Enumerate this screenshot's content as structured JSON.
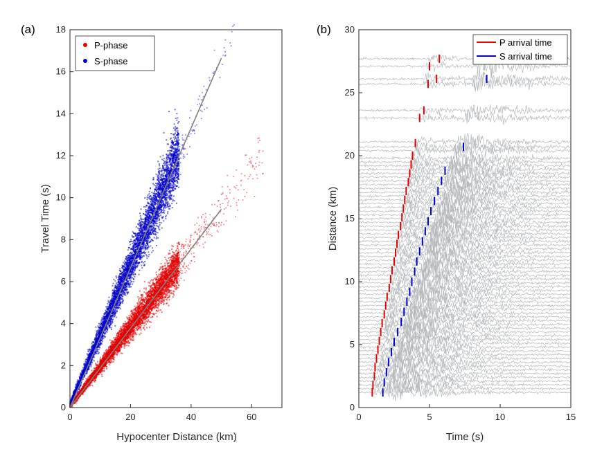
{
  "chart_data": [
    {
      "id": "a",
      "type": "scatter",
      "panel_label": "(a)",
      "title": "",
      "xlabel": "Hypocenter Distance (km)",
      "ylabel": "Travel Time (s)",
      "xlim": [
        0,
        70
      ],
      "ylim": [
        0,
        18
      ],
      "xticks": [
        "0",
        "20",
        "40",
        "60"
      ],
      "yticks": [
        "0",
        "2",
        "4",
        "6",
        "8",
        "10",
        "12",
        "14",
        "16",
        "18"
      ],
      "legend": {
        "position": "top-left",
        "entries": [
          "P-phase",
          "S-phase"
        ]
      },
      "series": [
        {
          "name": "P-phase",
          "color": "#e30000",
          "trend_slope_s_per_km": 0.189,
          "dense_x_range_km": [
            0,
            36
          ],
          "sparse_x_range_km": [
            36,
            64
          ],
          "fit_line": {
            "x": [
              0,
              50
            ],
            "y": [
              0,
              9.45
            ]
          }
        },
        {
          "name": "S-phase",
          "color": "#0000c8",
          "trend_slope_s_per_km": 0.333,
          "dense_x_range_km": [
            0,
            36
          ],
          "sparse_x_range_km": [
            36,
            55
          ],
          "fit_line": {
            "x": [
              0,
              50
            ],
            "y": [
              0,
              16.65
            ]
          }
        }
      ],
      "fit_line_color": "#808080"
    },
    {
      "id": "b",
      "type": "line",
      "panel_label": "(b)",
      "title": "",
      "xlabel": "Time (s)",
      "ylabel": "Distance (km)",
      "xlim": [
        0,
        15
      ],
      "ylim": [
        0,
        30
      ],
      "xticks": [
        "0",
        "5",
        "10",
        "15"
      ],
      "yticks": [
        "0",
        "5",
        "10",
        "15",
        "20",
        "25",
        "30"
      ],
      "legend": {
        "position": "top-right",
        "entries": [
          "P arrival time",
          "S arrival time"
        ]
      },
      "waveform_color": "#b4b8bb",
      "p_color": "#e30000",
      "s_color": "#0000c8",
      "trace_distances_km": [
        1.2,
        1.5,
        1.8,
        2.1,
        2.4,
        2.7,
        3.0,
        3.3,
        3.6,
        3.9,
        4.2,
        4.5,
        4.8,
        5.1,
        5.4,
        5.7,
        6.0,
        6.3,
        6.6,
        6.9,
        7.2,
        7.5,
        7.8,
        8.1,
        8.4,
        8.7,
        9.0,
        9.3,
        9.6,
        9.9,
        10.2,
        10.5,
        10.8,
        11.1,
        11.4,
        11.7,
        12.0,
        12.3,
        12.6,
        12.9,
        13.2,
        13.5,
        13.8,
        14.1,
        14.4,
        14.7,
        15.0,
        15.3,
        15.6,
        15.9,
        16.2,
        16.5,
        16.8,
        17.1,
        17.4,
        17.7,
        18.0,
        18.3,
        18.6,
        18.9,
        19.2,
        19.5,
        19.8,
        20.4,
        20.7,
        21.1,
        23.0,
        23.6,
        25.7,
        26.1,
        27.1,
        27.7
      ],
      "p_arrivals": [
        {
          "d": 1.2,
          "t": 0.95
        },
        {
          "d": 1.8,
          "t": 1.0
        },
        {
          "d": 2.5,
          "t": 1.1
        },
        {
          "d": 3.2,
          "t": 1.15
        },
        {
          "d": 3.9,
          "t": 1.25
        },
        {
          "d": 4.6,
          "t": 1.35
        },
        {
          "d": 5.3,
          "t": 1.45
        },
        {
          "d": 6.0,
          "t": 1.55
        },
        {
          "d": 6.7,
          "t": 1.65
        },
        {
          "d": 7.4,
          "t": 1.8
        },
        {
          "d": 8.1,
          "t": 1.9
        },
        {
          "d": 8.8,
          "t": 2.0
        },
        {
          "d": 9.5,
          "t": 2.15
        },
        {
          "d": 10.2,
          "t": 2.25
        },
        {
          "d": 10.9,
          "t": 2.35
        },
        {
          "d": 11.6,
          "t": 2.5
        },
        {
          "d": 12.3,
          "t": 2.6
        },
        {
          "d": 13.0,
          "t": 2.7
        },
        {
          "d": 13.7,
          "t": 2.8
        },
        {
          "d": 14.4,
          "t": 2.95
        },
        {
          "d": 15.1,
          "t": 3.05
        },
        {
          "d": 15.8,
          "t": 3.15
        },
        {
          "d": 16.5,
          "t": 3.25
        },
        {
          "d": 17.2,
          "t": 3.35
        },
        {
          "d": 17.9,
          "t": 3.5
        },
        {
          "d": 18.6,
          "t": 3.6
        },
        {
          "d": 19.3,
          "t": 3.7
        },
        {
          "d": 20.0,
          "t": 3.8
        },
        {
          "d": 21.0,
          "t": 4.0
        },
        {
          "d": 23.0,
          "t": 4.3
        },
        {
          "d": 23.6,
          "t": 4.6
        },
        {
          "d": 25.7,
          "t": 4.9
        },
        {
          "d": 26.1,
          "t": 5.5
        },
        {
          "d": 27.1,
          "t": 5.0
        },
        {
          "d": 27.7,
          "t": 5.7
        }
      ],
      "s_arrivals": [
        {
          "d": 1.2,
          "t": 1.7
        },
        {
          "d": 2.0,
          "t": 1.8
        },
        {
          "d": 2.8,
          "t": 1.95
        },
        {
          "d": 3.6,
          "t": 2.1
        },
        {
          "d": 4.4,
          "t": 2.3
        },
        {
          "d": 5.2,
          "t": 2.5
        },
        {
          "d": 6.0,
          "t": 2.75
        },
        {
          "d": 6.8,
          "t": 3.0
        },
        {
          "d": 7.6,
          "t": 3.2
        },
        {
          "d": 8.4,
          "t": 3.4
        },
        {
          "d": 9.2,
          "t": 3.6
        },
        {
          "d": 10.0,
          "t": 3.75
        },
        {
          "d": 10.8,
          "t": 3.95
        },
        {
          "d": 11.6,
          "t": 4.1
        },
        {
          "d": 12.4,
          "t": 4.3
        },
        {
          "d": 13.2,
          "t": 4.5
        },
        {
          "d": 14.0,
          "t": 4.7
        },
        {
          "d": 14.8,
          "t": 4.9
        },
        {
          "d": 15.6,
          "t": 5.1
        },
        {
          "d": 16.4,
          "t": 5.35
        },
        {
          "d": 17.2,
          "t": 5.6
        },
        {
          "d": 18.0,
          "t": 5.85
        },
        {
          "d": 18.8,
          "t": 6.1
        },
        {
          "d": 20.7,
          "t": 7.4
        },
        {
          "d": 26.1,
          "t": 9.05
        }
      ]
    }
  ]
}
